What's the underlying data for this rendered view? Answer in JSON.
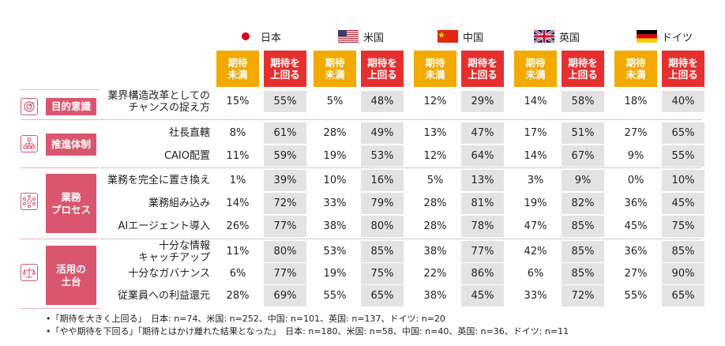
{
  "chart_data": {
    "type": "table",
    "header_groups": [
      "日本",
      "米国",
      "中国",
      "英国",
      "ドイツ"
    ],
    "sub_headers": [
      "期待\n未満",
      "期待を\n上回る"
    ],
    "categories": [
      {
        "name": "目的意識",
        "rows": [
          "業界構造改革としての\nチャンスの捉え方"
        ]
      },
      {
        "name": "推進体制",
        "rows": [
          "社長直轄",
          "CAIO配置"
        ]
      },
      {
        "name": "業務\nプロセス",
        "rows": [
          "業務を完全に置き換え",
          "業務組み込み",
          "AIエージェント導入"
        ]
      },
      {
        "name": "活用の\n土台",
        "rows": [
          "十分な情報\nキャッチアップ",
          "十分なガバナンス",
          "従業員への利益還元"
        ]
      }
    ],
    "values": [
      [
        "15%",
        "55%",
        "5%",
        "48%",
        "12%",
        "29%",
        "14%",
        "58%",
        "18%",
        "40%"
      ],
      [
        "8%",
        "61%",
        "28%",
        "49%",
        "13%",
        "47%",
        "17%",
        "51%",
        "27%",
        "65%"
      ],
      [
        "11%",
        "59%",
        "19%",
        "53%",
        "12%",
        "64%",
        "14%",
        "67%",
        "9%",
        "55%"
      ],
      [
        "1%",
        "39%",
        "10%",
        "16%",
        "5%",
        "13%",
        "3%",
        "9%",
        "0%",
        "10%"
      ],
      [
        "14%",
        "72%",
        "33%",
        "79%",
        "28%",
        "81%",
        "19%",
        "82%",
        "36%",
        "45%"
      ],
      [
        "26%",
        "77%",
        "38%",
        "80%",
        "28%",
        "78%",
        "47%",
        "85%",
        "45%",
        "75%"
      ],
      [
        "11%",
        "80%",
        "53%",
        "85%",
        "38%",
        "77%",
        "42%",
        "85%",
        "36%",
        "85%"
      ],
      [
        "6%",
        "77%",
        "19%",
        "75%",
        "22%",
        "86%",
        "6%",
        "85%",
        "27%",
        "90%"
      ],
      [
        "28%",
        "69%",
        "55%",
        "65%",
        "38%",
        "45%",
        "33%",
        "72%",
        "55%",
        "65%"
      ]
    ],
    "notes": [
      "•「期待を大きく上回る」　日本: n=74、米国: n=252、中国: n=101、英国: n=137、ドイツ: n=20",
      "•「やや期待を下回る」「期待とはかけ離れた結果となった」　日本: n=180、米国: n=58、中国: n=40、英国: n=36、ドイツ: n=11"
    ]
  },
  "colors": {
    "below_header": "#f2a900",
    "above_header": "#e63030",
    "category": "#d9566e",
    "above_cell_bg": "#e3e3e3"
  },
  "icons": [
    "target-icon",
    "org-chart-icon",
    "network-icon",
    "scale-icon"
  ]
}
